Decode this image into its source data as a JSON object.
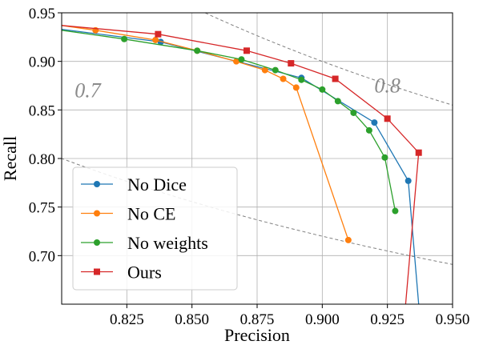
{
  "chart_data": {
    "type": "line",
    "xlabel": "Precision",
    "ylabel": "Recall",
    "xlim": [
      0.8,
      0.95
    ],
    "ylim": [
      0.65,
      0.95
    ],
    "xticks": [
      "0.825",
      "0.850",
      "0.875",
      "0.900",
      "0.925",
      "0.950"
    ],
    "xtick_values": [
      0.825,
      0.85,
      0.875,
      0.9,
      0.925,
      0.95
    ],
    "yticks": [
      "0.70",
      "0.75",
      "0.80",
      "0.85",
      "0.90",
      "0.95"
    ],
    "ytick_values": [
      0.7,
      0.75,
      0.8,
      0.85,
      0.9,
      0.95
    ],
    "grid": true,
    "legend_position": "lower-left",
    "iso_f1_curves": [
      {
        "f": 0.7,
        "label": "0.7",
        "label_at": [
          0.805,
          0.863
        ]
      },
      {
        "f": 0.8,
        "label": "0.8",
        "label_at": [
          0.92,
          0.868
        ]
      },
      {
        "f": 0.9,
        "label": ""
      },
      {
        "f": 0.6,
        "label": ""
      }
    ],
    "series": [
      {
        "name": "No Dice",
        "color": "#1f77b4",
        "marker": "circle",
        "x": [
          0.8,
          0.838,
          0.892,
          0.92,
          0.933,
          0.937
        ],
        "y": [
          0.933,
          0.92,
          0.883,
          0.837,
          0.777,
          0.65
        ],
        "marked": [
          false,
          true,
          true,
          true,
          true,
          false
        ]
      },
      {
        "name": "No CE",
        "color": "#ff7f0e",
        "marker": "circle",
        "x": [
          0.8,
          0.813,
          0.836,
          0.852,
          0.867,
          0.878,
          0.885,
          0.89,
          0.91
        ],
        "y": [
          0.937,
          0.932,
          0.922,
          0.911,
          0.9,
          0.891,
          0.882,
          0.873,
          0.716
        ],
        "marked": [
          false,
          true,
          true,
          true,
          true,
          true,
          true,
          true,
          true
        ]
      },
      {
        "name": "No weights",
        "color": "#2ca02c",
        "marker": "circle",
        "x": [
          0.8,
          0.824,
          0.852,
          0.869,
          0.882,
          0.892,
          0.9,
          0.906,
          0.912,
          0.918,
          0.924,
          0.928
        ],
        "y": [
          0.932,
          0.923,
          0.911,
          0.902,
          0.891,
          0.881,
          0.871,
          0.859,
          0.847,
          0.829,
          0.801,
          0.746
        ],
        "marked": [
          false,
          true,
          true,
          true,
          true,
          true,
          true,
          true,
          true,
          true,
          true,
          true
        ]
      },
      {
        "name": "Ours",
        "color": "#d62728",
        "marker": "square",
        "x": [
          0.8,
          0.837,
          0.871,
          0.888,
          0.905,
          0.925,
          0.937,
          0.932
        ],
        "y": [
          0.937,
          0.928,
          0.911,
          0.898,
          0.882,
          0.841,
          0.806,
          0.65
        ],
        "marked": [
          false,
          true,
          true,
          true,
          true,
          true,
          true,
          false
        ]
      }
    ]
  }
}
